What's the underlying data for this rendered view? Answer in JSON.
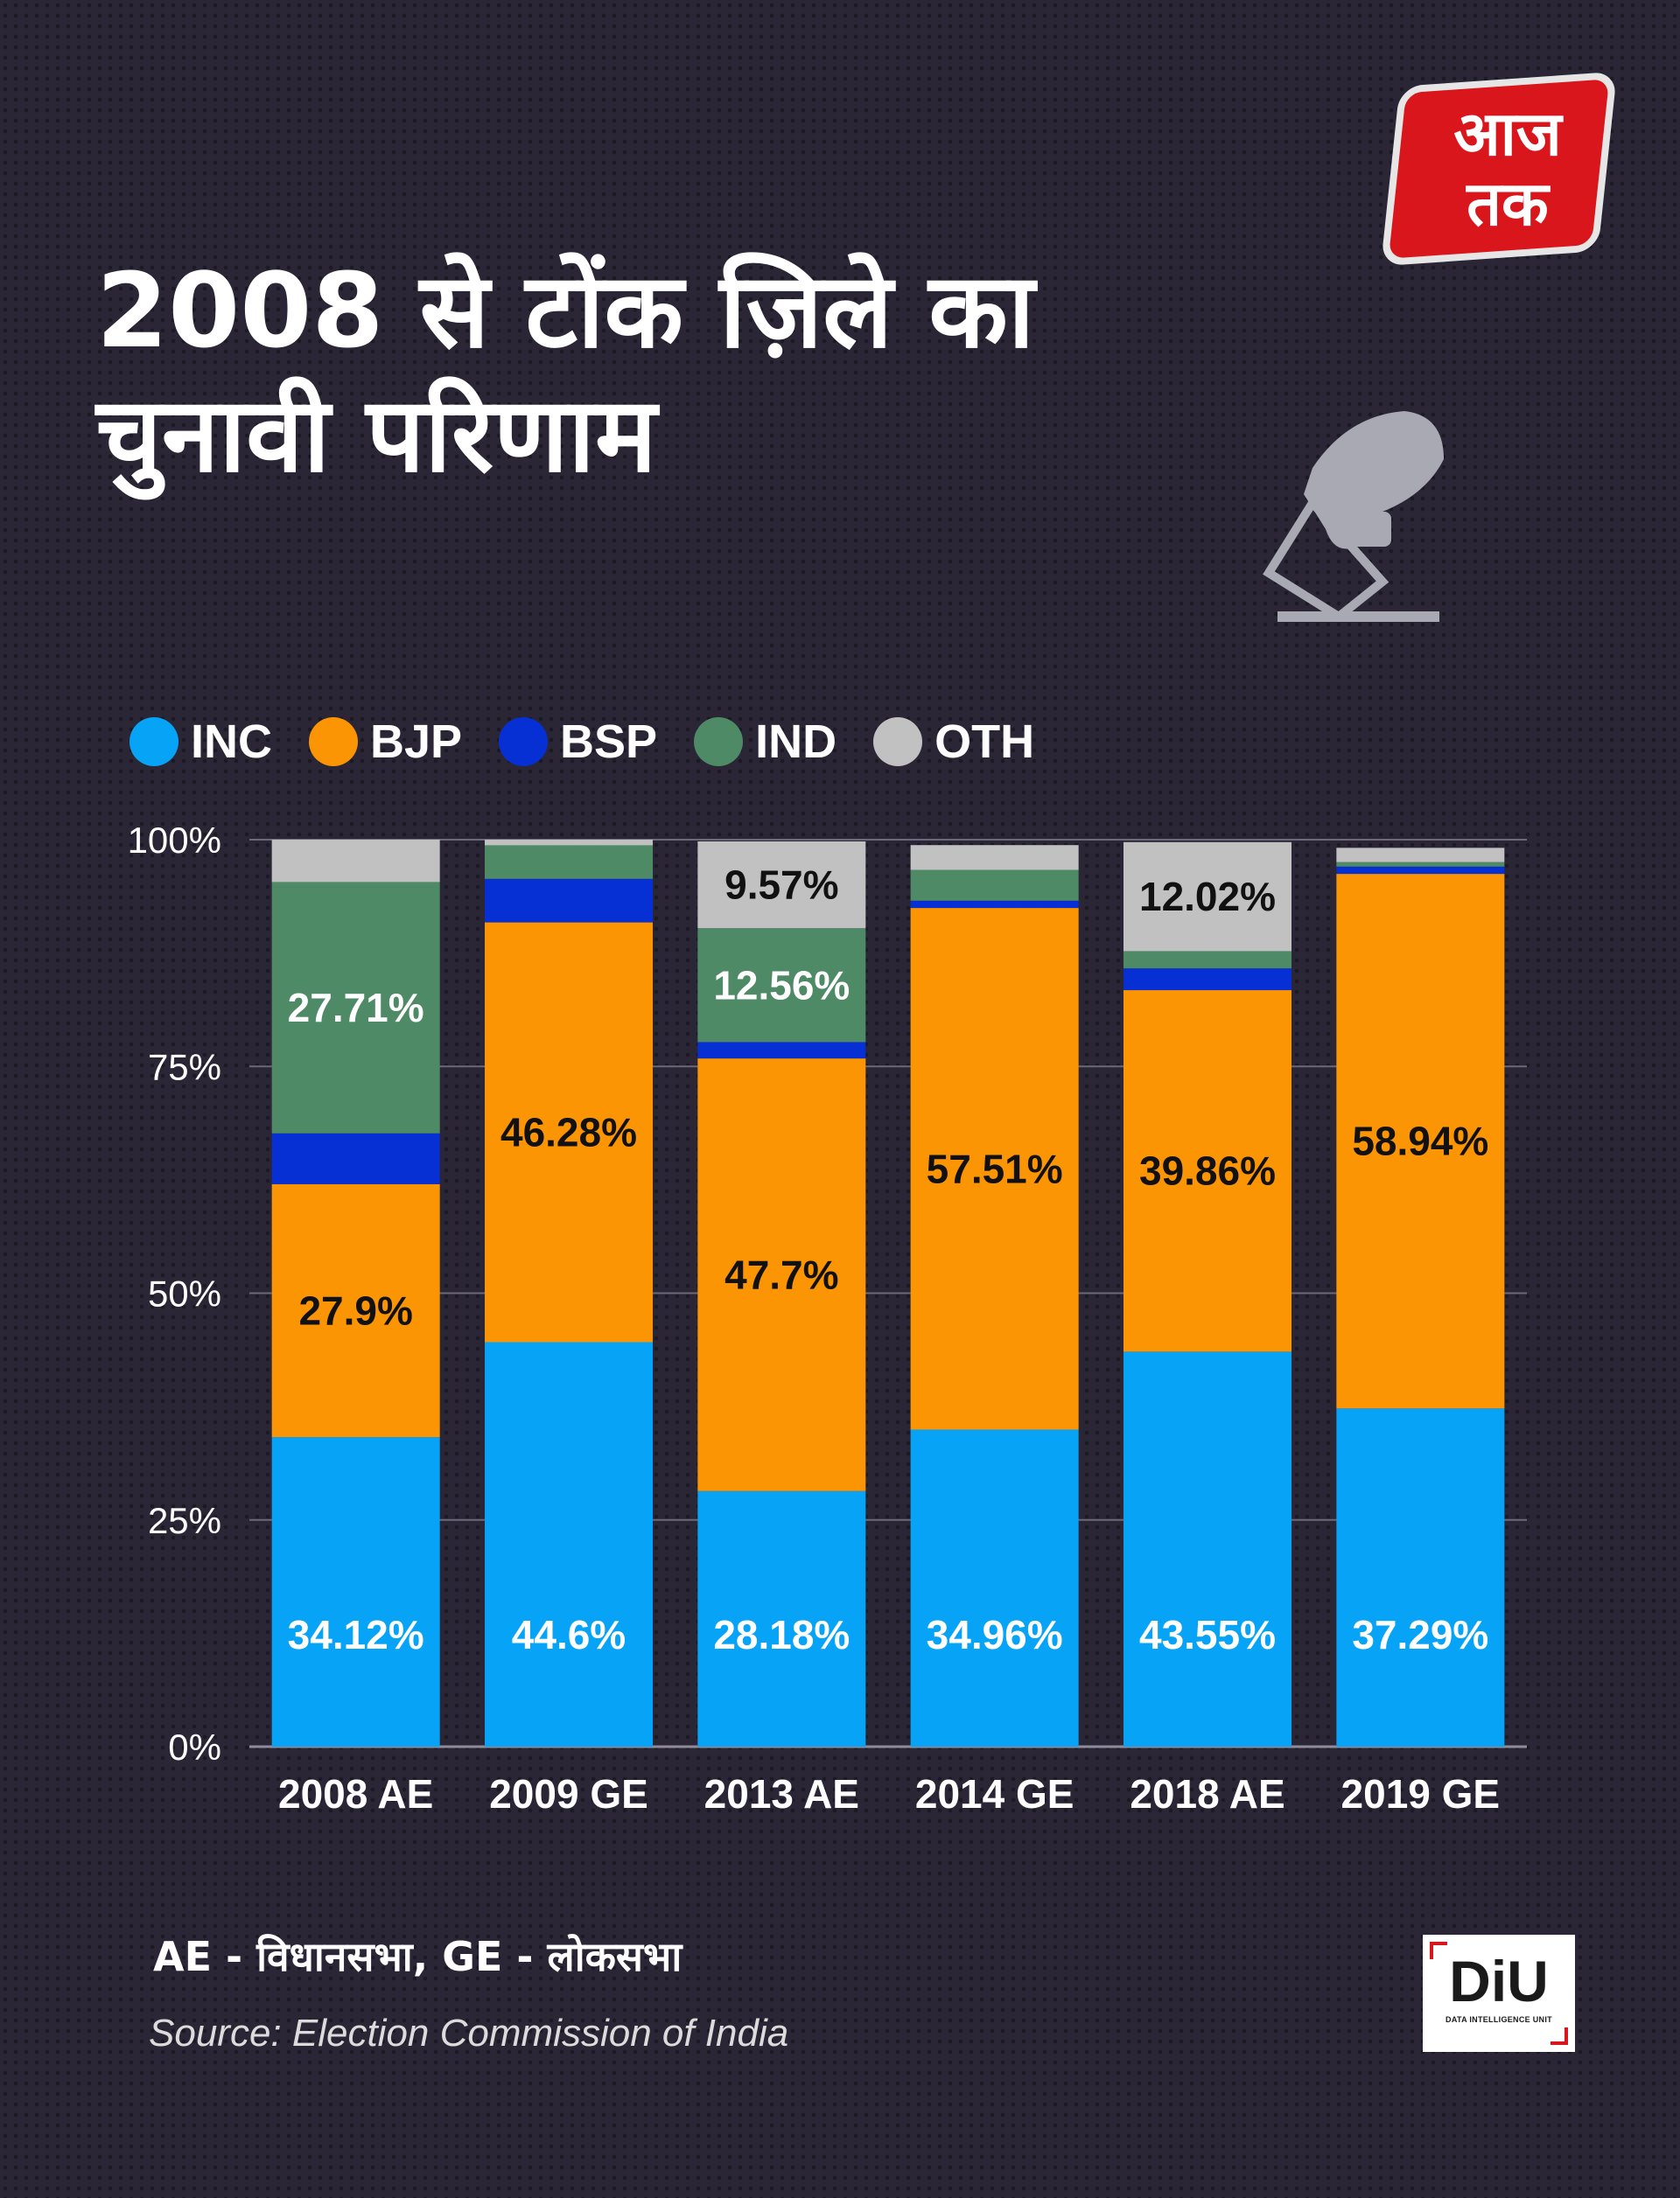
{
  "header": {
    "title_line1": "2008 से टोंक ज़िले का",
    "title_line2": "चुनावी परिणाम"
  },
  "logo": {
    "line1": "आज",
    "line2": "तक"
  },
  "icons": {
    "vote": "vote-ballot-icon"
  },
  "legend": [
    {
      "label": "INC",
      "color": "#06a3f7"
    },
    {
      "label": "BJP",
      "color": "#fb9503"
    },
    {
      "label": "BSP",
      "color": "#0730d4"
    },
    {
      "label": "IND",
      "color": "#4e8a66"
    },
    {
      "label": "OTH",
      "color": "#c1c1c1"
    }
  ],
  "chart_data": {
    "type": "bar",
    "stacked": true,
    "categories": [
      "2008 AE",
      "2009 GE",
      "2013 AE",
      "2014 GE",
      "2018 AE",
      "2019 GE"
    ],
    "ylim": [
      0,
      100
    ],
    "yticks": [
      "0%",
      "25%",
      "50%",
      "75%",
      "100%"
    ],
    "grid": true,
    "legend_position": "top-left",
    "series": [
      {
        "name": "INC",
        "color": "#06a3f7",
        "values": [
          34.12,
          44.6,
          28.18,
          34.96,
          43.55,
          37.29
        ],
        "labels": [
          "34.12%",
          "44.6%",
          "28.18%",
          "34.96%",
          "43.55%",
          "37.29%"
        ]
      },
      {
        "name": "BJP",
        "color": "#fb9503",
        "values": [
          27.9,
          46.28,
          47.7,
          57.51,
          39.86,
          58.94
        ],
        "labels": [
          "27.9%",
          "46.28%",
          "47.7%",
          "57.51%",
          "39.86%",
          "58.94%"
        ]
      },
      {
        "name": "BSP",
        "color": "#0730d4",
        "values": [
          5.6,
          4.8,
          1.8,
          0.8,
          2.4,
          0.8
        ],
        "labels": [
          "",
          "",
          "",
          "",
          "",
          ""
        ]
      },
      {
        "name": "IND",
        "color": "#4e8a66",
        "values": [
          27.71,
          3.7,
          12.56,
          3.4,
          1.9,
          0.5
        ],
        "labels": [
          "27.71%",
          "",
          "12.56%",
          "",
          "",
          ""
        ]
      },
      {
        "name": "OTH",
        "color": "#c1c1c1",
        "values": [
          4.67,
          0.62,
          9.57,
          2.73,
          12.02,
          1.57
        ],
        "labels": [
          "",
          "",
          "9.57%",
          "",
          "12.02%",
          ""
        ]
      }
    ]
  },
  "footer": {
    "abbrev": "AE - विधानसभा, GE - लोकसभा",
    "source": "Source: Election Commission of India",
    "diu_logo": "DiU",
    "diu_text": "DATA INTELLIGENCE UNIT"
  }
}
